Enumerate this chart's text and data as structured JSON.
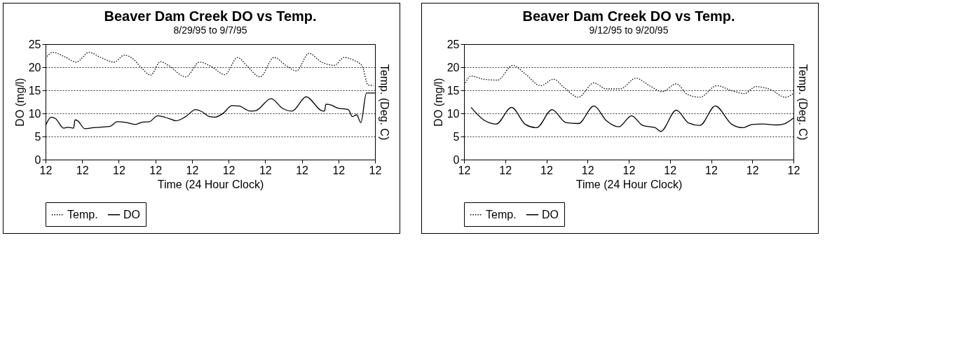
{
  "chart_data": [
    {
      "type": "line",
      "title": "Beaver Dam Creek DO vs Temp.",
      "subtitle": "8/29/95 to 9/7/95",
      "xlabel": "Time (24 Hour Clock)",
      "ylabel": "DO (mg/l)",
      "y2label": "Temp. (Deg. C)",
      "xlim": [
        "--08-29T12:00",
        "--09-07T12:00"
      ],
      "xticks": [
        {
          "value": "--08-29T12:00",
          "label": "12"
        },
        {
          "value": "--08-30T12:00",
          "label": "12"
        },
        {
          "value": "--08-31T12:00",
          "label": "12"
        },
        {
          "value": "--09-01T12:00",
          "label": "12"
        },
        {
          "value": "--09-02T12:00",
          "label": "12"
        },
        {
          "value": "--09-03T12:00",
          "label": "12"
        },
        {
          "value": "--09-04T12:00",
          "label": "12"
        },
        {
          "value": "--09-05T12:00",
          "label": "12"
        },
        {
          "value": "--09-06T12:00",
          "label": "12"
        },
        {
          "value": "--09-07T12:00",
          "label": "12"
        }
      ],
      "ylim": [
        0,
        25
      ],
      "yticks": [
        0,
        5,
        10,
        15,
        20,
        25
      ],
      "grid": "y",
      "legend": "bottom",
      "series": [
        {
          "name": "Temp.",
          "color": "#000000",
          "line_style": "dotted",
          "x": [
            "--08-29T12:00",
            "--08-29T16:36",
            "--08-30T00:54",
            "--08-30T08:12",
            "--08-30T16:30",
            "--08-31T00:48",
            "--08-31T09:00",
            "--08-31T15:30",
            "--08-31T21:00",
            "--09-01T02:30",
            "--09-01T08:54",
            "--09-01T15:18",
            "--09-01T20:54",
            "--09-02T07:54",
            "--09-02T17:00",
            "--09-03T00:24",
            "--09-03T09:36",
            "--09-03T17:54",
            "--09-04T00:18",
            "--09-04T08:36",
            "--09-04T17:48",
            "--09-05T02:00",
            "--09-05T08:30",
            "--09-05T16:42",
            "--09-06T01:00",
            "--09-06T09:18",
            "--09-06T15:42",
            "--09-06T22:06",
            "--09-07T03:42",
            "--09-07T07:18",
            "--09-07T11:00"
          ],
          "values": [
            21.9,
            23.2,
            22.2,
            21.1,
            23.2,
            22.0,
            21.1,
            22.6,
            21.9,
            20.0,
            18.3,
            21.2,
            20.3,
            17.9,
            21.1,
            20.2,
            18.4,
            22.1,
            20.2,
            17.9,
            22.1,
            20.3,
            19.2,
            23.0,
            21.1,
            20.4,
            22.1,
            21.5,
            20.2,
            16.2,
            16.0
          ]
        },
        {
          "name": "DO",
          "color": "#000000",
          "line_style": "solid",
          "x": [
            "--08-29T12:00",
            "--08-29T15:42",
            "--08-29T18:24",
            "--08-29T23:54",
            "--08-30T02:42",
            "--08-30T06:24",
            "--08-30T07:18",
            "--08-30T09:06",
            "--08-30T13:42",
            "--08-30T19:12",
            "--08-31T06:18",
            "--08-31T10:54",
            "--08-31T17:18",
            "--08-31T22:48",
            "--09-01T03:24",
            "--09-01T08:00",
            "--09-01T13:30",
            "--09-01T20:54",
            "--09-02T01:30",
            "--09-02T07:54",
            "--09-02T14:18",
            "--09-02T18:54",
            "--09-02T23:30",
            "--09-03T03:12",
            "--09-03T08:42",
            "--09-03T14:12",
            "--09-03T18:48",
            "--09-04T02:12",
            "--09-04T05:48",
            "--09-04T15:54",
            "--09-04T23:18",
            "--09-05T05:42",
            "--09-05T14:54",
            "--09-06T01:00",
            "--09-06T02:54",
            "--09-06T03:48",
            "--09-06T07:24",
            "--09-06T11:06",
            "--09-06T18:30",
            "--09-06T21:12",
            "--09-07T00:00",
            "--09-07T02:42",
            "--09-07T06:24",
            "--09-07T11:54"
          ],
          "values": [
            7.4,
            9.2,
            8.9,
            6.8,
            7.0,
            6.8,
            8.6,
            8.4,
            6.7,
            6.9,
            7.2,
            8.2,
            8.0,
            7.6,
            8.1,
            8.2,
            9.5,
            8.9,
            8.4,
            9.3,
            10.8,
            10.3,
            9.3,
            9.2,
            10.1,
            11.7,
            11.6,
            10.5,
            10.6,
            13.2,
            11.1,
            10.5,
            13.6,
            10.6,
            10.5,
            12.0,
            11.8,
            11.2,
            10.8,
            9.3,
            9.7,
            8.0,
            14.4,
            14.4
          ]
        }
      ]
    },
    {
      "type": "line",
      "title": "Beaver Dam Creek DO vs Temp.",
      "subtitle": "9/12/95 to 9/20/95",
      "xlabel": "Time (24 Hour Clock)",
      "ylabel": "DO (mg/l)",
      "y2label": "Temp. (Deg. C)",
      "xlim": [
        "--09-12T12:00",
        "--09-20T12:00"
      ],
      "xticks": [
        {
          "value": "--09-12T12:00",
          "label": "12"
        },
        {
          "value": "--09-13T12:00",
          "label": "12"
        },
        {
          "value": "--09-14T12:00",
          "label": "12"
        },
        {
          "value": "--09-15T12:00",
          "label": "12"
        },
        {
          "value": "--09-16T12:00",
          "label": "12"
        },
        {
          "value": "--09-17T12:00",
          "label": "12"
        },
        {
          "value": "--09-18T12:00",
          "label": "12"
        },
        {
          "value": "--09-19T12:00",
          "label": "12"
        },
        {
          "value": "--09-20T12:00",
          "label": "12"
        }
      ],
      "ylim": [
        0,
        25
      ],
      "yticks": [
        0,
        5,
        10,
        15,
        20,
        25
      ],
      "grid": "y",
      "legend": "bottom",
      "series": [
        {
          "name": "Temp.",
          "color": "#000000",
          "line_style": "dotted",
          "x": [
            "--09-12T12:48",
            "--09-12T16:06",
            "--09-12T23:24",
            "--09-13T07:30",
            "--09-13T16:30",
            "--09-13T23:48",
            "--09-14T08:42",
            "--09-14T16:06",
            "--09-14T22:36",
            "--09-15T06:42",
            "--09-15T15:42",
            "--09-15T23:00",
            "--09-16T07:06",
            "--09-16T16:06",
            "--09-17T01:00",
            "--09-17T07:30",
            "--09-17T15:42",
            "--09-17T22:12",
            "--09-18T05:30",
            "--09-18T15:18",
            "--09-19T00:12",
            "--09-19T07:30",
            "--09-19T14:00",
            "--09-19T23:00",
            "--09-20T07:06",
            "--09-20T12:00"
          ],
          "values": [
            16.6,
            18.1,
            17.4,
            17.2,
            20.4,
            18.5,
            16.0,
            17.4,
            15.5,
            13.5,
            16.6,
            15.3,
            15.3,
            17.6,
            15.8,
            14.7,
            16.4,
            14.1,
            13.5,
            16.0,
            14.9,
            14.3,
            15.8,
            15.1,
            13.5,
            14.3
          ]
        },
        {
          "name": "DO",
          "color": "#000000",
          "line_style": "solid",
          "x": [
            "--09-12T16:06",
            "--09-12T23:24",
            "--09-13T06:42",
            "--09-13T15:42",
            "--09-13T23:48",
            "--09-14T06:18",
            "--09-14T15:18",
            "--09-14T23:24",
            "--09-15T06:42",
            "--09-15T15:42",
            "--09-15T23:00",
            "--09-16T06:18",
            "--09-16T13:36",
            "--09-16T20:06",
            "--09-17T03:24",
            "--09-17T06:42",
            "--09-17T15:42",
            "--09-17T23:00",
            "--09-18T05:30",
            "--09-18T14:24",
            "--09-19T00:12",
            "--09-19T06:42",
            "--09-19T11:36",
            "--09-19T18:06",
            "--09-20T02:12",
            "--09-20T07:06",
            "--09-20T12:00"
          ],
          "values": [
            11.3,
            8.6,
            7.7,
            11.3,
            7.6,
            6.9,
            10.8,
            8.0,
            7.8,
            11.6,
            8.4,
            7.1,
            9.5,
            7.4,
            6.9,
            6.1,
            10.7,
            7.9,
            7.4,
            11.6,
            7.6,
            6.9,
            7.6,
            7.7,
            7.5,
            7.8,
            9.0
          ]
        }
      ]
    }
  ]
}
